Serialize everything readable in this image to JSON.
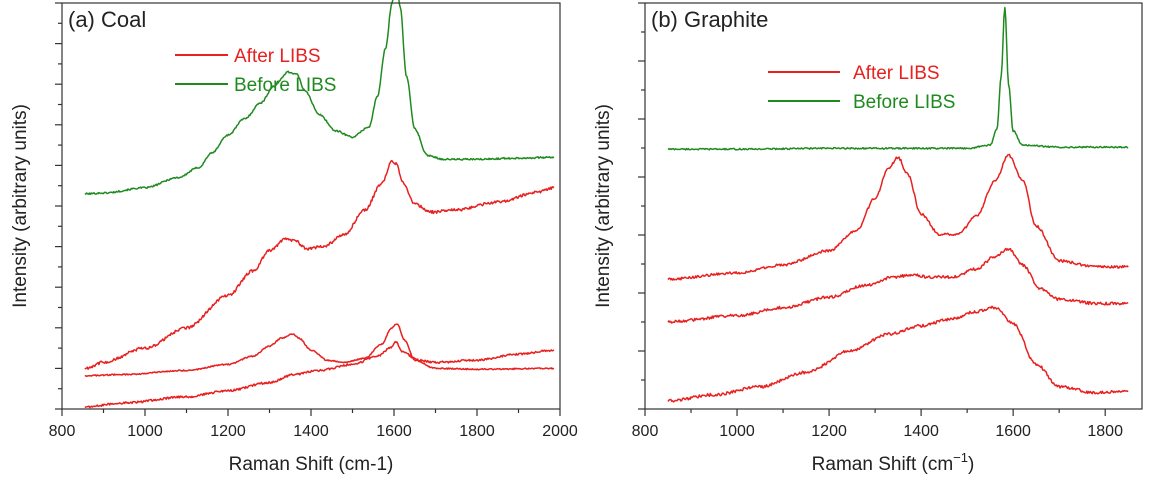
{
  "chart_data": [
    {
      "type": "line",
      "title": "(a) Coal",
      "xlabel": "Raman Shift (cm-1)",
      "ylabel": "Intensity (arbitrary units)",
      "xlim": [
        800,
        2000
      ],
      "ylim": [
        0,
        10
      ],
      "xticks": [
        800,
        1000,
        1200,
        1400,
        1600,
        1800,
        2000
      ],
      "y_tick_labels": "none",
      "legend": {
        "placement": "top-center",
        "entries": [
          {
            "label": "After LIBS",
            "color": "#e8201f"
          },
          {
            "label": "Before LIBS",
            "color": "#1f8a1f"
          }
        ]
      },
      "series": [
        {
          "legend_label": "Before LIBS",
          "color": "#1f8a1f",
          "noise": 0.02,
          "x": [
            855,
            900,
            1000,
            1080,
            1130,
            1160,
            1200,
            1240,
            1280,
            1310,
            1345,
            1365,
            1385,
            1420,
            1460,
            1500,
            1540,
            1560,
            1580,
            1595,
            1605,
            1615,
            1630,
            1650,
            1680,
            1720,
            1800,
            1900,
            1985
          ],
          "y": [
            5.3,
            5.32,
            5.45,
            5.7,
            5.95,
            6.3,
            6.75,
            7.15,
            7.55,
            7.95,
            8.3,
            8.25,
            7.85,
            7.25,
            6.85,
            6.7,
            6.95,
            7.7,
            8.9,
            10.0,
            10.55,
            9.9,
            8.2,
            6.9,
            6.25,
            6.15,
            6.15,
            6.18,
            6.2
          ]
        },
        {
          "legend_label": "After LIBS",
          "color": "#e8201f",
          "noise": 0.035,
          "x": [
            855,
            900,
            1000,
            1100,
            1200,
            1260,
            1300,
            1340,
            1360,
            1390,
            1430,
            1480,
            1530,
            1570,
            1595,
            1605,
            1620,
            1650,
            1690,
            1750,
            1850,
            1950,
            1985
          ],
          "y": [
            1.0,
            1.15,
            1.5,
            2.0,
            2.8,
            3.4,
            3.9,
            4.2,
            4.15,
            3.95,
            4.0,
            4.3,
            4.9,
            5.55,
            6.1,
            6.05,
            5.6,
            5.05,
            4.85,
            4.9,
            5.1,
            5.35,
            5.45
          ]
        },
        {
          "legend_label": "After LIBS",
          "color": "#e8201f",
          "noise": 0.015,
          "x": [
            855,
            950,
            1100,
            1200,
            1260,
            1300,
            1330,
            1355,
            1370,
            1400,
            1440,
            1480,
            1530,
            1570,
            1595,
            1608,
            1625,
            1650,
            1700,
            1800,
            1985
          ],
          "y": [
            0.82,
            0.85,
            0.95,
            1.1,
            1.3,
            1.55,
            1.75,
            1.85,
            1.75,
            1.45,
            1.2,
            1.15,
            1.25,
            1.6,
            2.0,
            2.1,
            1.7,
            1.2,
            1.0,
            0.98,
            1.0
          ]
        },
        {
          "legend_label": "After LIBS",
          "color": "#e8201f",
          "noise": 0.025,
          "x": [
            855,
            950,
            1100,
            1200,
            1300,
            1360,
            1420,
            1500,
            1560,
            1590,
            1605,
            1620,
            1660,
            1700,
            1800,
            1900,
            1985
          ],
          "y": [
            0.05,
            0.15,
            0.3,
            0.45,
            0.65,
            0.85,
            0.95,
            1.1,
            1.3,
            1.5,
            1.65,
            1.4,
            1.2,
            1.15,
            1.2,
            1.35,
            1.45
          ]
        }
      ]
    },
    {
      "type": "line",
      "title": "(b) Graphite",
      "xlabel": "Raman Shift (cm",
      "xlabel_superscript": "−1",
      "xlabel_suffix": ")",
      "ylabel": "Intensity (arbitrary units)",
      "xlim": [
        800,
        1880
      ],
      "ylim": [
        0,
        10
      ],
      "xticks": [
        800,
        1000,
        1200,
        1400,
        1600,
        1800
      ],
      "y_tick_labels": "none",
      "legend": {
        "placement": "top-center",
        "entries": [
          {
            "label": "After LIBS",
            "color": "#e8201f"
          },
          {
            "label": "Before LIBS",
            "color": "#1f8a1f"
          }
        ]
      },
      "series": [
        {
          "legend_label": "Before LIBS",
          "color": "#1f8a1f",
          "noise": 0.018,
          "x": [
            850,
            1000,
            1200,
            1400,
            1500,
            1550,
            1565,
            1574,
            1582,
            1590,
            1600,
            1620,
            1700,
            1850
          ],
          "y": [
            6.4,
            6.4,
            6.42,
            6.42,
            6.42,
            6.5,
            6.9,
            8.2,
            9.9,
            8.0,
            6.85,
            6.5,
            6.45,
            6.45
          ]
        },
        {
          "legend_label": "After LIBS",
          "color": "#e8201f",
          "noise": 0.03,
          "x": [
            850,
            1000,
            1100,
            1200,
            1260,
            1300,
            1330,
            1350,
            1370,
            1400,
            1440,
            1480,
            1520,
            1560,
            1590,
            1620,
            1650,
            1700,
            1780,
            1850
          ],
          "y": [
            3.2,
            3.35,
            3.55,
            3.9,
            4.4,
            5.2,
            5.95,
            6.2,
            5.8,
            4.8,
            4.3,
            4.3,
            4.75,
            5.6,
            6.25,
            5.65,
            4.5,
            3.65,
            3.5,
            3.5
          ]
        },
        {
          "legend_label": "After LIBS",
          "color": "#e8201f",
          "noise": 0.035,
          "x": [
            850,
            1000,
            1100,
            1200,
            1280,
            1340,
            1380,
            1420,
            1470,
            1520,
            1560,
            1590,
            1620,
            1660,
            1700,
            1780,
            1850
          ],
          "y": [
            2.15,
            2.3,
            2.5,
            2.75,
            3.05,
            3.25,
            3.3,
            3.25,
            3.25,
            3.45,
            3.75,
            3.95,
            3.55,
            2.95,
            2.7,
            2.6,
            2.6
          ]
        },
        {
          "legend_label": "After LIBS",
          "color": "#e8201f",
          "noise": 0.035,
          "x": [
            850,
            950,
            1050,
            1150,
            1250,
            1330,
            1400,
            1460,
            1520,
            1560,
            1600,
            1650,
            1700,
            1780,
            1850
          ],
          "y": [
            0.2,
            0.35,
            0.55,
            0.9,
            1.45,
            1.85,
            2.05,
            2.2,
            2.4,
            2.5,
            2.1,
            1.1,
            0.55,
            0.4,
            0.45
          ]
        }
      ]
    }
  ]
}
